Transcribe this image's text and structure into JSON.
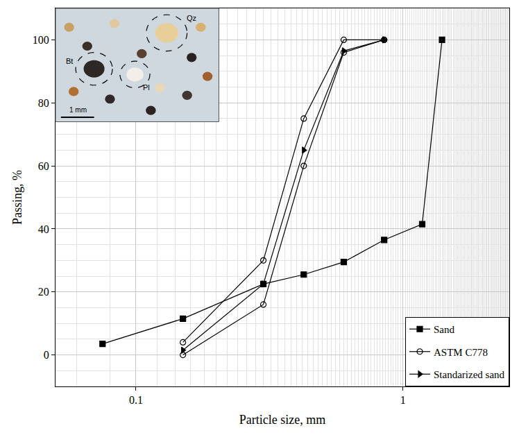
{
  "chart_data": {
    "type": "line",
    "x_label": "Particle size, mm",
    "y_label": "Passing, %",
    "log": "x",
    "grid": true,
    "legend": "lower right",
    "xlim": [
      0.05,
      2.5
    ],
    "xticks": [
      0.1,
      1
    ],
    "ylim": [
      -10,
      110
    ],
    "yticks": [
      0,
      20,
      40,
      60,
      80,
      100
    ],
    "series": [
      {
        "name": "Sand",
        "color": "#000000",
        "marker": "square",
        "line_style": "solid",
        "x": [
          0.075,
          0.15,
          0.3,
          0.425,
          0.6,
          0.85,
          1.18,
          1.4
        ],
        "values": [
          3.5,
          11.5,
          22.5,
          25.5,
          29.5,
          36.5,
          41.5,
          100
        ]
      },
      {
        "name": "ASTM C778",
        "color": "#000000",
        "marker": "circle-open",
        "line_style": "solid",
        "x": [
          0.15,
          0.3,
          0.425,
          0.6,
          0.85
        ],
        "upper": [
          4,
          30,
          75,
          100,
          100
        ],
        "lower": [
          0,
          16,
          60,
          96,
          100
        ]
      },
      {
        "name": "Standarized sand",
        "color": "#000000",
        "marker": "triangle-right",
        "line_style": "solid",
        "x": [
          0.15,
          0.3,
          0.425,
          0.6,
          0.85
        ],
        "values": [
          1.5,
          22.5,
          65,
          96.5,
          100
        ]
      }
    ],
    "inset": {
      "labels": [
        "Qz",
        "Bt",
        "Pl"
      ],
      "scale_bar": "1 mm"
    }
  }
}
